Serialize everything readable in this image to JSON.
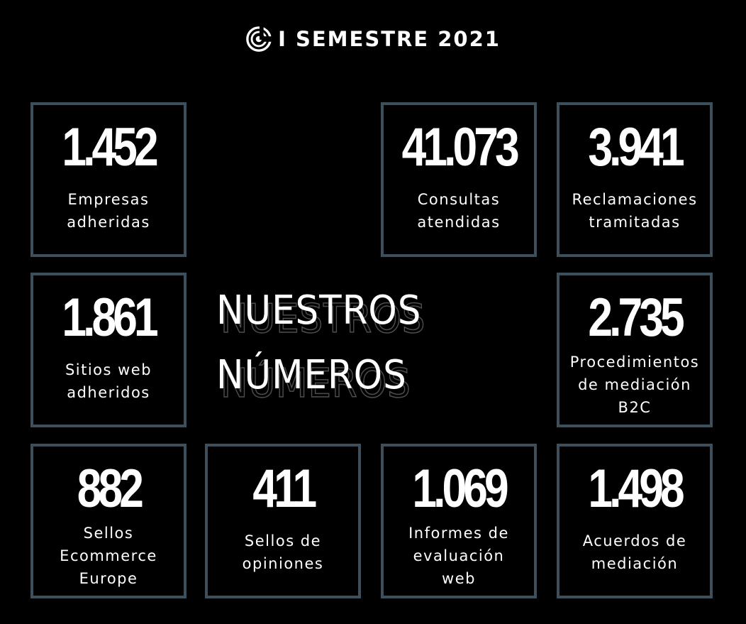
{
  "header": {
    "title": "I SEMESTRE 2021"
  },
  "center": {
    "line1": "NUESTROS",
    "line2": "NÚMEROS"
  },
  "cards": [
    {
      "value": "1.452",
      "label_lines": [
        "Empresas",
        "adheridas"
      ]
    },
    {
      "value": "41.073",
      "label_lines": [
        "Consultas",
        "atendidas"
      ]
    },
    {
      "value": "3.941",
      "label_lines": [
        "Reclamaciones",
        "tramitadas"
      ]
    },
    {
      "value": "1.861",
      "label_lines": [
        "Sitios web",
        "adheridos"
      ]
    },
    {
      "value": "2.735",
      "label_lines": [
        "Procedimientos",
        "de mediación",
        "B2C"
      ]
    },
    {
      "value": "882",
      "label_lines": [
        "Sellos",
        "Ecommerce",
        "Europe"
      ]
    },
    {
      "value": "411",
      "label_lines": [
        "Sellos de",
        "opiniones"
      ]
    },
    {
      "value": "1.069",
      "label_lines": [
        "Informes de",
        "evaluación",
        "web"
      ]
    },
    {
      "value": "1.498",
      "label_lines": [
        "Acuerdos de",
        "mediación"
      ]
    }
  ],
  "colors": {
    "background": "#000000",
    "card_border": "#3c4f5a",
    "text": "#ffffff"
  }
}
